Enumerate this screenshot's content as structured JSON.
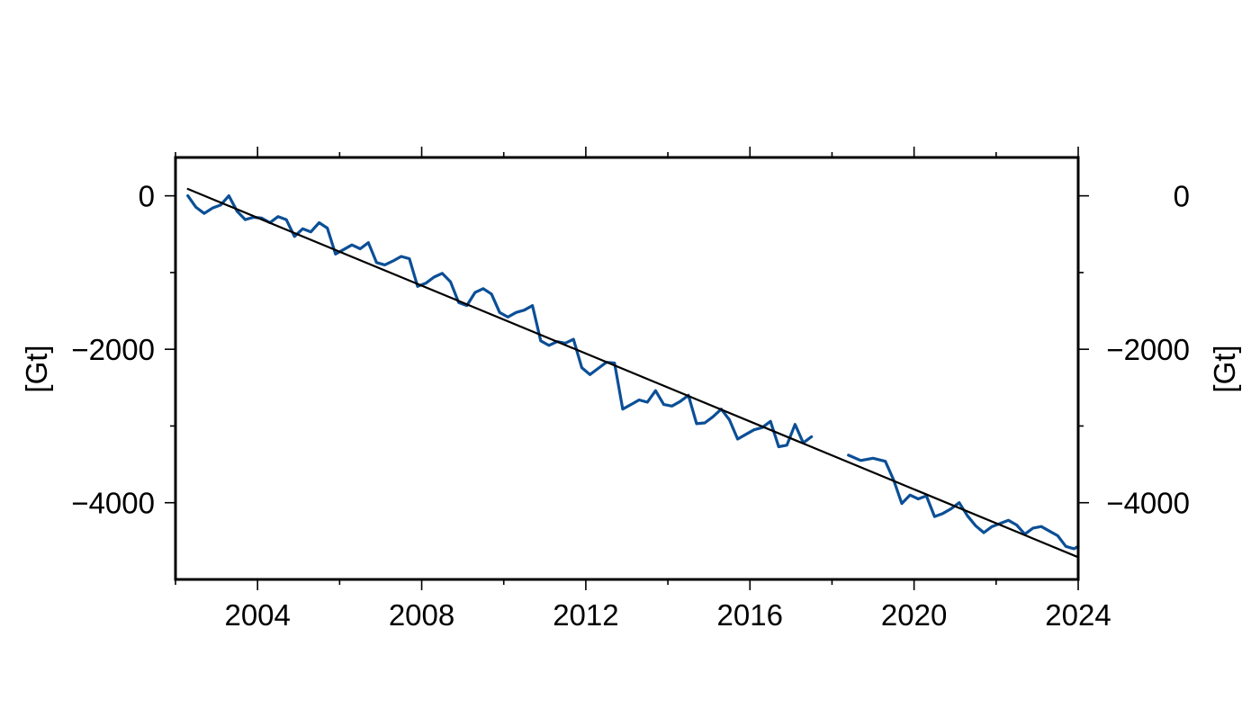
{
  "chart_data": {
    "type": "line",
    "title": "",
    "xlabel": "",
    "ylabel": "[Gt]",
    "ylabel_right": "[Gt]",
    "xlim": [
      2002.0,
      2024.0
    ],
    "ylim": [
      -5000,
      500
    ],
    "x_ticks": [
      2004,
      2008,
      2012,
      2016,
      2020,
      2024
    ],
    "x_tick_labels": [
      "2004",
      "2008",
      "2012",
      "2016",
      "2020",
      "2024"
    ],
    "x_minor_ticks": [
      2002,
      2006,
      2010,
      2014,
      2018,
      2022
    ],
    "y_ticks": [
      0,
      -2000,
      -4000
    ],
    "y_tick_labels": [
      "0",
      "−2000",
      "−4000"
    ],
    "y_minor_ticks": [
      -1000,
      -3000
    ],
    "grid": false,
    "legend": "none",
    "colors": {
      "series": "#0b4f96",
      "trend": "#000000",
      "frame": "#000000"
    },
    "series": [
      {
        "style": "data",
        "segments": [
          {
            "x": [
              2002.3,
              2002.5,
              2002.7,
              2002.9,
              2003.1,
              2003.3,
              2003.5,
              2003.7,
              2003.9,
              2004.1,
              2004.3,
              2004.5,
              2004.7,
              2004.9,
              2005.1,
              2005.3,
              2005.5,
              2005.7,
              2005.9,
              2006.1,
              2006.3,
              2006.5,
              2006.7,
              2006.9,
              2007.1,
              2007.3,
              2007.5,
              2007.7,
              2007.9,
              2008.1,
              2008.3,
              2008.5,
              2008.7,
              2008.9,
              2009.1,
              2009.3,
              2009.5,
              2009.7,
              2009.9,
              2010.1,
              2010.3,
              2010.5,
              2010.7,
              2010.9,
              2011.1,
              2011.3,
              2011.5,
              2011.7,
              2011.9,
              2012.1,
              2012.3,
              2012.5,
              2012.7,
              2012.9,
              2013.1,
              2013.3,
              2013.5,
              2013.7,
              2013.9,
              2014.1,
              2014.3,
              2014.5,
              2014.7,
              2014.9,
              2015.1,
              2015.3,
              2015.5,
              2015.7,
              2015.9,
              2016.1,
              2016.3,
              2016.5,
              2016.7,
              2016.9,
              2017.1,
              2017.3,
              2017.5
            ],
            "y": [
              0,
              -150,
              -230,
              -160,
              -120,
              0,
              -200,
              -310,
              -280,
              -290,
              -350,
              -270,
              -310,
              -530,
              -430,
              -470,
              -350,
              -420,
              -760,
              -700,
              -640,
              -690,
              -610,
              -870,
              -900,
              -850,
              -790,
              -820,
              -1180,
              -1140,
              -1060,
              -1010,
              -1120,
              -1390,
              -1430,
              -1260,
              -1210,
              -1280,
              -1520,
              -1580,
              -1520,
              -1490,
              -1430,
              -1890,
              -1950,
              -1900,
              -1920,
              -1870,
              -2240,
              -2330,
              -2250,
              -2170,
              -2180,
              -2780,
              -2720,
              -2660,
              -2690,
              -2540,
              -2720,
              -2740,
              -2680,
              -2600,
              -2970,
              -2960,
              -2880,
              -2780,
              -2920,
              -3170,
              -3110,
              -3050,
              -3020,
              -2940,
              -3270,
              -3250,
              -2980,
              -3220,
              -3140
            ]
          },
          {
            "x": [
              2018.4,
              2018.7,
              2019.0,
              2019.3,
              2019.5,
              2019.7,
              2019.9,
              2020.1,
              2020.3,
              2020.5,
              2020.7,
              2020.9,
              2021.1,
              2021.3,
              2021.5,
              2021.7,
              2021.9,
              2022.1,
              2022.3,
              2022.5,
              2022.7,
              2022.9,
              2023.1,
              2023.3,
              2023.5,
              2023.7,
              2023.9,
              2024.0
            ],
            "y": [
              -3380,
              -3450,
              -3420,
              -3460,
              -3700,
              -4010,
              -3900,
              -3950,
              -3910,
              -4180,
              -4140,
              -4080,
              -4000,
              -4170,
              -4300,
              -4390,
              -4310,
              -4270,
              -4230,
              -4290,
              -4410,
              -4330,
              -4310,
              -4370,
              -4430,
              -4570,
              -4600,
              -4570
            ]
          }
        ]
      },
      {
        "style": "trend",
        "segments": [
          {
            "x": [
              2002.3,
              2024.0
            ],
            "y": [
              90,
              -4710
            ]
          }
        ]
      }
    ]
  }
}
